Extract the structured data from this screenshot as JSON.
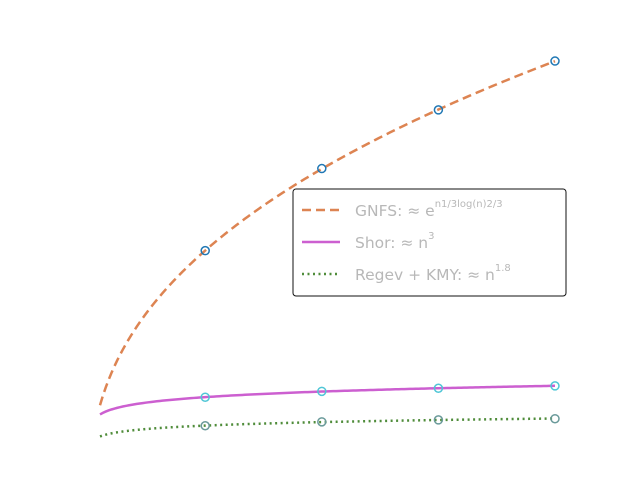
{
  "chart_data": {
    "type": "line",
    "title": "",
    "xlabel": "",
    "ylabel": "",
    "axes_visible": false,
    "grid": false,
    "legend_position": "center-right",
    "x": [
      1024,
      2048,
      3072,
      4096
    ],
    "series": [
      {
        "name": "GNFS: ≈ e^{n^{1/3} log(n)^{2/3}}",
        "label_main": "GNFS: ≈ e",
        "label_sup": "n1/3log(n)2/3",
        "style": "dashed",
        "color": "#dd8452",
        "marker_color": "#1f77b4",
        "y": [
          0.41,
          0.62,
          0.77,
          0.895
        ]
      },
      {
        "name": "Shor: ≈ n³",
        "label_main": "Shor: ≈ n",
        "label_sup": "3",
        "style": "solid",
        "color": "#cc5fd0",
        "marker_color": "#4fc6d6",
        "y": [
          0.035,
          0.05,
          0.058,
          0.064
        ]
      },
      {
        "name": "Regev + KMY: ≈ n^{1.8}",
        "label_main": "Regev + KMY: ≈ n",
        "label_sup": "1.8",
        "style": "dotted",
        "color": "#4f8c3a",
        "marker_color": "#6a9a9a",
        "y": [
          -0.038,
          -0.028,
          -0.023,
          -0.02
        ]
      }
    ],
    "x_range": [
      100,
      4096
    ],
    "y_range": [
      -0.1,
      1.0
    ]
  }
}
